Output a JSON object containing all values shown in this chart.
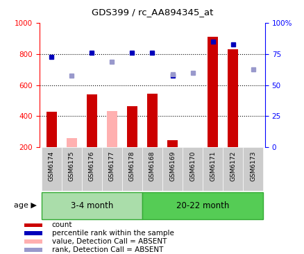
{
  "title": "GDS399 / rc_AA894345_at",
  "categories": [
    "GSM6174",
    "GSM6175",
    "GSM6176",
    "GSM6177",
    "GSM6178",
    "GSM6168",
    "GSM6169",
    "GSM6170",
    "GSM6171",
    "GSM6172",
    "GSM6173"
  ],
  "group1_label": "3-4 month",
  "group2_label": "20-22 month",
  "g1_indices": [
    0,
    4
  ],
  "g2_indices": [
    5,
    10
  ],
  "ylim_left": [
    200,
    1000
  ],
  "yticks_left": [
    200,
    400,
    600,
    800,
    1000
  ],
  "yticks_right": [
    0,
    25,
    50,
    75,
    100
  ],
  "hlines": [
    400,
    600,
    800
  ],
  "dark_red": "#cc0000",
  "light_red": "#ffb0b0",
  "dark_blue": "#0000bb",
  "light_blue": "#9999cc",
  "light_green": "#aaddaa",
  "green": "#55cc55",
  "count_values": [
    430,
    null,
    540,
    null,
    465,
    545,
    248,
    null,
    910,
    830,
    null
  ],
  "count_absent": [
    null,
    258,
    null,
    435,
    null,
    null,
    null,
    null,
    null,
    null,
    null
  ],
  "rank_values": [
    780,
    null,
    810,
    null,
    808,
    808,
    660,
    null,
    880,
    862,
    null
  ],
  "rank_absent": [
    null,
    660,
    null,
    750,
    null,
    null,
    670,
    678,
    null,
    null,
    700
  ],
  "legend_labels": [
    "count",
    "percentile rank within the sample",
    "value, Detection Call = ABSENT",
    "rank, Detection Call = ABSENT"
  ]
}
